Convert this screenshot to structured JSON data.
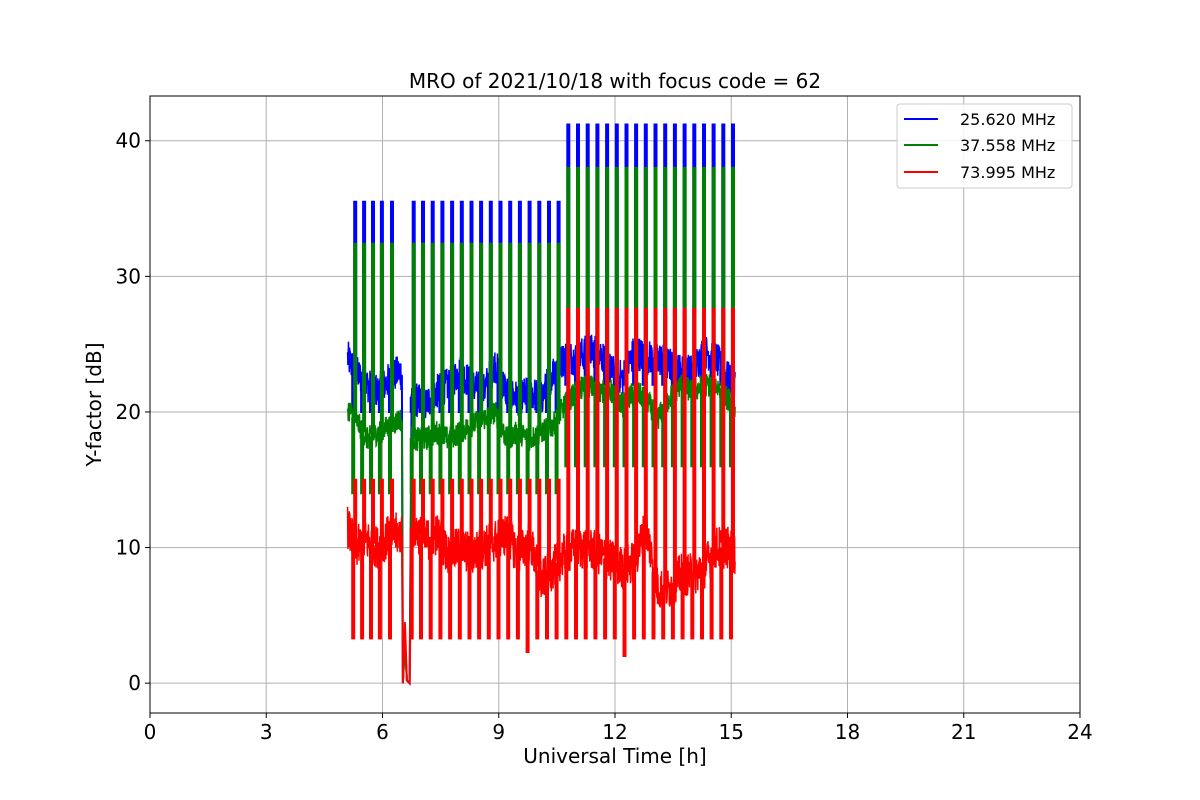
{
  "chart_data": {
    "type": "line",
    "title": "MRO of 2021/10/18 with focus code = 62",
    "xlabel": "Universal Time [h]",
    "ylabel": "Y-factor [dB]",
    "xlim": [
      0,
      24
    ],
    "ylim": [
      -2.2,
      43.3
    ],
    "xticks": [
      0,
      3,
      6,
      9,
      12,
      15,
      18,
      21,
      24
    ],
    "yticks": [
      0,
      10,
      20,
      30,
      40
    ],
    "grid": true,
    "legend_position": "top-right",
    "gap": [
      6.5,
      6.75
    ],
    "spike_times": [
      5.27,
      5.5,
      5.73,
      5.96,
      6.22,
      6.78,
      7.02,
      7.27,
      7.52,
      7.77,
      8.02,
      8.27,
      8.52,
      8.77,
      9.02,
      9.27,
      9.52,
      9.77,
      10.02,
      10.27,
      10.52,
      10.77,
      11.02,
      11.27,
      11.52,
      11.77,
      12.02,
      12.27,
      12.52,
      12.77,
      13.02,
      13.27,
      13.52,
      13.77,
      14.02,
      14.27,
      14.52,
      14.77,
      15.02
    ],
    "series": [
      {
        "name": "25.620 MHz",
        "color": "#0000ff",
        "x": [
          5.1,
          5.3,
          5.6,
          5.9,
          6.2,
          6.45,
          6.8,
          7.1,
          7.4,
          7.7,
          8.0,
          8.3,
          8.6,
          8.9,
          9.2,
          9.5,
          9.8,
          10.1,
          10.4,
          10.7,
          11.0,
          11.3,
          11.6,
          11.9,
          12.2,
          12.5,
          12.8,
          13.1,
          13.4,
          13.7,
          14.0,
          14.3,
          14.6,
          14.9,
          15.1
        ],
        "y": [
          24.0,
          23.0,
          22.0,
          21.5,
          22.5,
          23.0,
          21.0,
          20.5,
          21.5,
          22.0,
          23.0,
          22.0,
          21.5,
          23.5,
          21.5,
          21.0,
          21.5,
          21.0,
          23.0,
          24.0,
          24.0,
          24.5,
          24.5,
          23.0,
          22.5,
          24.5,
          24.0,
          24.0,
          23.5,
          23.0,
          23.0,
          24.5,
          24.0,
          22.5,
          22.0
        ],
        "noise": 1.3,
        "peak": [
          35.5,
          35.5,
          35.5,
          35.5,
          35.5,
          35.5,
          35.5,
          35.5,
          35.5,
          35.5,
          35.5,
          35.5,
          35.5,
          35.5,
          35.5,
          35.5,
          35.5,
          35.5,
          35.5,
          35.5,
          35.5,
          41.2,
          41.2,
          41.2,
          41.2,
          41.2,
          41.2,
          41.2,
          41.2,
          41.2,
          41.2,
          41.2,
          41.2,
          41.2,
          41.2,
          41.2,
          41.2,
          41.2,
          41.2
        ],
        "spike_low": [
          20.0,
          20.0,
          20.0,
          20.0,
          20.0,
          20.0,
          20.0,
          20.0,
          20.0,
          20.0,
          20.0,
          20.0,
          20.0,
          20.0,
          20.0,
          20.0,
          20.0,
          20.0,
          20.0,
          20.0,
          20.0,
          22.0,
          22.0,
          22.0,
          22.0,
          22.0,
          22.0,
          22.0,
          22.0,
          22.0,
          22.0,
          22.0,
          22.0,
          22.0,
          22.0,
          22.0,
          22.0,
          22.0,
          22.0
        ]
      },
      {
        "name": "37.558 MHz",
        "color": "#008000",
        "x": [
          5.1,
          5.3,
          5.6,
          5.9,
          6.2,
          6.45,
          6.8,
          7.1,
          7.4,
          7.7,
          8.0,
          8.3,
          8.6,
          8.9,
          9.2,
          9.5,
          9.8,
          10.1,
          10.4,
          10.7,
          11.0,
          11.3,
          11.6,
          11.9,
          12.2,
          12.5,
          12.8,
          13.1,
          13.4,
          13.7,
          14.0,
          14.3,
          14.6,
          14.9,
          15.1
        ],
        "y": [
          20.3,
          19.5,
          18.0,
          18.5,
          19.0,
          19.5,
          18.0,
          18.0,
          18.5,
          18.0,
          18.5,
          19.0,
          19.5,
          20.0,
          18.0,
          18.5,
          18.0,
          18.5,
          19.0,
          20.5,
          21.5,
          22.0,
          21.5,
          21.5,
          20.5,
          21.5,
          21.0,
          19.5,
          21.0,
          22.0,
          21.5,
          22.0,
          22.0,
          21.0,
          20.5
        ],
        "noise": 0.9,
        "peak": [
          32.4,
          32.4,
          32.4,
          32.4,
          32.4,
          32.4,
          32.4,
          32.4,
          32.4,
          32.4,
          32.4,
          32.4,
          32.4,
          32.4,
          32.4,
          32.4,
          32.4,
          32.4,
          32.4,
          32.4,
          32.4,
          38.0,
          38.0,
          38.0,
          38.0,
          38.0,
          38.0,
          38.0,
          38.0,
          38.0,
          38.0,
          38.0,
          38.0,
          38.0,
          38.0,
          38.0,
          38.0,
          38.0,
          38.0
        ],
        "spike_low": [
          14.0,
          14.0,
          14.0,
          14.0,
          14.0,
          14.0,
          14.0,
          14.0,
          14.0,
          14.0,
          14.0,
          14.0,
          14.0,
          14.0,
          14.0,
          14.0,
          14.0,
          14.0,
          14.0,
          14.0,
          14.0,
          16.0,
          16.0,
          16.0,
          16.0,
          16.0,
          16.0,
          16.0,
          16.0,
          16.0,
          16.0,
          16.0,
          16.0,
          16.0,
          16.0,
          16.0,
          16.0,
          16.0,
          16.0
        ]
      },
      {
        "name": "73.995 MHz",
        "color": "#ff0000",
        "x": [
          5.1,
          5.3,
          5.6,
          5.9,
          6.2,
          6.45,
          6.8,
          7.1,
          7.4,
          7.7,
          8.0,
          8.3,
          8.6,
          8.9,
          9.2,
          9.5,
          9.8,
          10.1,
          10.4,
          10.7,
          11.0,
          11.3,
          11.6,
          11.9,
          12.2,
          12.5,
          12.8,
          13.1,
          13.4,
          13.7,
          14.0,
          14.3,
          14.6,
          14.9,
          15.1
        ],
        "y": [
          11.5,
          10.0,
          10.5,
          10.0,
          11.0,
          11.0,
          11.5,
          10.5,
          11.0,
          9.5,
          10.0,
          9.5,
          10.0,
          10.5,
          11.0,
          9.5,
          10.5,
          7.5,
          8.5,
          9.5,
          10.0,
          10.0,
          9.5,
          9.0,
          8.5,
          9.0,
          11.5,
          7.0,
          7.0,
          8.0,
          8.0,
          8.5,
          10.0,
          10.0,
          9.5
        ],
        "noise": 1.6,
        "peak": [
          15.0,
          15.0,
          15.0,
          15.0,
          15.0,
          15.0,
          15.0,
          15.0,
          15.0,
          15.0,
          15.0,
          15.0,
          15.0,
          15.0,
          15.0,
          15.0,
          15.0,
          15.0,
          15.0,
          15.0,
          15.0,
          27.6,
          27.6,
          27.6,
          27.6,
          27.6,
          27.6,
          27.6,
          27.6,
          27.6,
          27.6,
          27.6,
          27.6,
          27.6,
          27.6,
          27.6,
          27.6,
          27.6,
          27.6
        ],
        "spike_low": [
          3.3,
          3.3,
          3.3,
          3.3,
          3.3,
          3.3,
          3.3,
          3.3,
          3.3,
          3.3,
          3.3,
          3.3,
          3.3,
          3.3,
          3.3,
          3.3,
          3.3,
          2.3,
          3.3,
          3.3,
          3.3,
          3.3,
          3.3,
          3.3,
          3.3,
          3.3,
          3.3,
          2.0,
          3.3,
          3.3,
          3.3,
          3.3,
          3.3,
          3.3,
          3.3,
          3.3,
          3.3,
          3.3,
          3.3
        ]
      }
    ]
  }
}
